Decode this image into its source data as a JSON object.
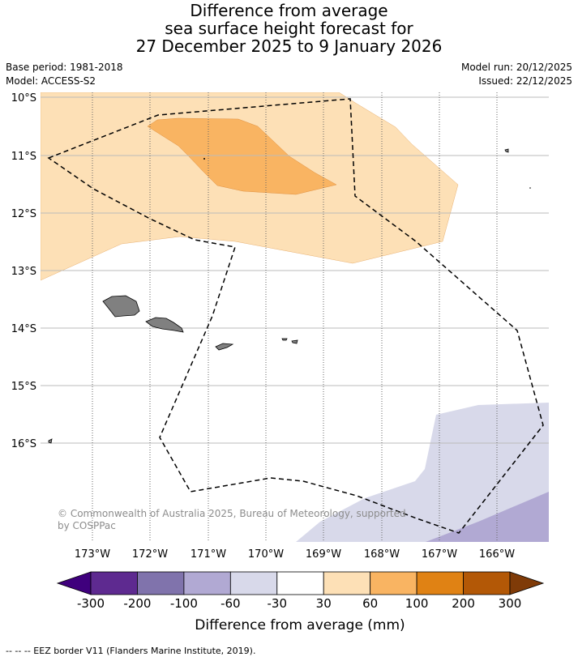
{
  "title": {
    "line1": "Difference from average",
    "line2": "sea surface height forecast for",
    "line3": "27 December 2025 to 9 January 2026"
  },
  "meta": {
    "base_period": "Base period: 1981-2018",
    "model": "Model: ACCESS-S2",
    "model_run": "Model run: 20/12/2025",
    "issued": "Issued: 22/12/2025"
  },
  "map": {
    "lat_labels": [
      "10°S",
      "11°S",
      "12°S",
      "13°S",
      "14°S",
      "15°S",
      "16°S"
    ],
    "lon_labels": [
      "173°W",
      "172°W",
      "171°W",
      "170°W",
      "169°W",
      "168°W",
      "167°W",
      "166°W"
    ],
    "copyright": "© Commonwealth of Australia 2025, Bureau of Meteorology, supported",
    "copyright_line2": "by COSPPac",
    "colors": {
      "c30_60": "#fde0b6",
      "c60_100": "#f9b462",
      "cm30_m60": "#d8d9ea",
      "cm60_m100": "#b1a9d3",
      "land": "#808080"
    }
  },
  "colorbar": {
    "ticks": [
      "-300",
      "-200",
      "-100",
      "-60",
      "-30",
      "30",
      "60",
      "100",
      "200",
      "300"
    ],
    "colors": [
      "#3f007d",
      "#5e2a90",
      "#8073ac",
      "#b1a9d3",
      "#d8d9ea",
      "#ffffff",
      "#fde0b6",
      "#f9b462",
      "#e08214",
      "#b35806",
      "#7f3b08"
    ],
    "label": "Difference from average (mm)"
  },
  "footnote": "--  --  -- EEZ border V11 (Flanders Marine Institute, 2019)."
}
